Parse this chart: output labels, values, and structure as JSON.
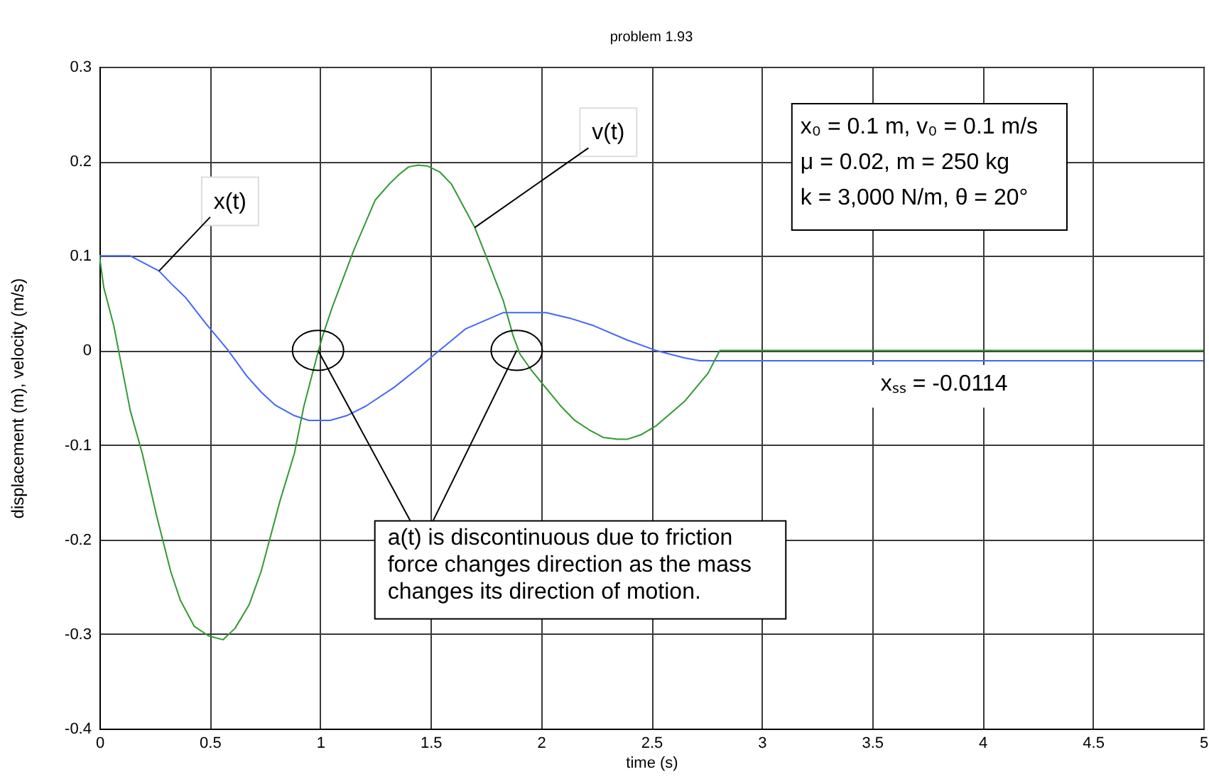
{
  "chart_data": {
    "type": "line",
    "title": "problem 1.93",
    "xlabel": "time (s)",
    "ylabel": "displacement (m), velocity (m/s)",
    "xlim": [
      0,
      5
    ],
    "ylim": [
      -0.4,
      0.3
    ],
    "xticks": [
      0,
      0.5,
      1,
      1.5,
      2,
      2.5,
      3,
      3.5,
      4,
      4.5,
      5
    ],
    "yticks": [
      -0.4,
      -0.3,
      -0.2,
      -0.1,
      0,
      0.1,
      0.2,
      0.3
    ],
    "grid": true,
    "line_style": "solid",
    "series": [
      {
        "name": "x(t)",
        "color": "#4466ff",
        "x": [
          0,
          0.14,
          0.27,
          0.323,
          0.39,
          0.48,
          0.58,
          0.667,
          0.732,
          0.797,
          0.883,
          0.948,
          1.045,
          1.12,
          1.206,
          1.335,
          1.443,
          1.53,
          1.66,
          1.83,
          2.024,
          2.132,
          2.24,
          2.39,
          2.52,
          2.65,
          2.72,
          5
        ],
        "values": [
          0.1,
          0.1,
          0.084,
          0.071,
          0.056,
          0.029,
          0.001,
          -0.027,
          -0.044,
          -0.058,
          -0.069,
          -0.074,
          -0.074,
          -0.069,
          -0.059,
          -0.039,
          -0.019,
          -0.002,
          0.023,
          0.04,
          0.04,
          0.034,
          0.026,
          0.011,
          0,
          -0.008,
          -0.011,
          -0.011
        ]
      },
      {
        "name": "v(t)",
        "color": "#339933",
        "x": [
          0,
          0.02,
          0.065,
          0.14,
          0.194,
          0.258,
          0.323,
          0.366,
          0.43,
          0.495,
          0.56,
          0.614,
          0.678,
          0.732,
          0.818,
          0.883,
          0.926,
          0.965,
          0.99,
          1.012,
          1.055,
          1.152,
          1.249,
          1.313,
          1.357,
          1.4,
          1.443,
          1.486,
          1.54,
          1.594,
          1.7,
          1.766,
          1.83,
          1.873,
          1.905,
          1.96,
          2.09,
          2.153,
          2.218,
          2.282,
          2.347,
          2.39,
          2.455,
          2.52,
          2.65,
          2.757,
          2.81,
          5
        ],
        "values": [
          0.1,
          0.066,
          0.026,
          -0.064,
          -0.109,
          -0.174,
          -0.234,
          -0.264,
          -0.292,
          -0.302,
          -0.306,
          -0.294,
          -0.269,
          -0.234,
          -0.159,
          -0.109,
          -0.059,
          -0.024,
          -0.002,
          0.016,
          0.046,
          0.106,
          0.159,
          0.176,
          0.186,
          0.194,
          0.196,
          0.195,
          0.189,
          0.176,
          0.13,
          0.091,
          0.052,
          0.016,
          -0.004,
          -0.022,
          -0.059,
          -0.074,
          -0.084,
          -0.092,
          -0.094,
          -0.094,
          -0.089,
          -0.08,
          -0.054,
          -0.024,
          0,
          0
        ]
      },
      {
        "type": "scatter",
        "color": "#000000",
        "marker": "circle",
        "x": [
          0.99,
          1.89
        ],
        "values": [
          0,
          0
        ]
      }
    ],
    "annotations": [
      "x₀ = 0.1 m, v₀ = 0.1 m/s\nμ = 0.02, m = 250 kg\nk = 3,000 N/m,  θ = 20°",
      {
        "text": "a(t) is discontinuous due to friction\nforce changes direction as the mass\nchanges its direction of motion.",
        "x": 0.99,
        "y": 0
      },
      {
        "text": "xₛₛ = -0.0114",
        "x": 3.5,
        "y": -0.011
      }
    ]
  }
}
